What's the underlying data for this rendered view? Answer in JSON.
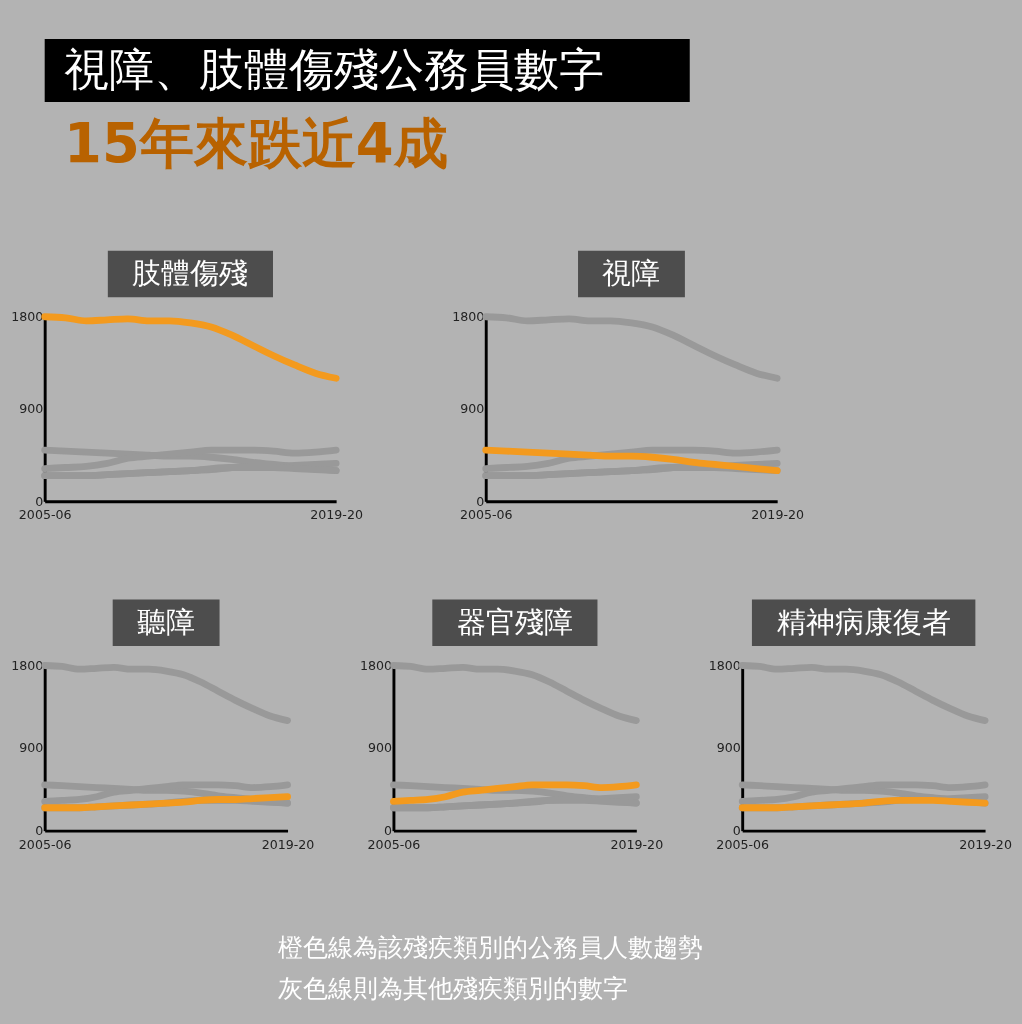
{
  "chart_data": [
    {
      "type": "other",
      "title": "視障、肢體傷殘公務員數字",
      "subtitle": "15年來跌近4成"
    },
    {
      "type": "line",
      "title": "肢體傷殘",
      "categories": [
        "2005-06",
        null,
        null,
        null,
        null,
        null,
        null,
        null,
        null,
        null,
        null,
        null,
        null,
        null,
        "2019-20"
      ],
      "ylim": [
        0,
        1800
      ],
      "yticks": [
        0,
        900,
        1800
      ],
      "grid": false,
      "series": [
        {
          "color": "#999999",
          "values": [
            500,
            490,
            480,
            470,
            460,
            450,
            440,
            440,
            430,
            410,
            380,
            360,
            340,
            320,
            300
          ]
        },
        {
          "color": "#999999",
          "values": [
            250,
            250,
            250,
            260,
            270,
            280,
            290,
            300,
            310,
            330,
            340,
            340,
            350,
            360,
            370
          ]
        },
        {
          "color": "#999999",
          "values": [
            320,
            330,
            340,
            370,
            420,
            440,
            460,
            480,
            500,
            500,
            500,
            490,
            470,
            480,
            500
          ]
        },
        {
          "color": "#999999",
          "values": [
            250,
            250,
            250,
            260,
            270,
            280,
            290,
            300,
            320,
            330,
            330,
            330,
            320,
            310,
            300
          ]
        },
        {
          "color": "#f39a1e",
          "values": [
            1800,
            1790,
            1760,
            1770,
            1780,
            1760,
            1760,
            1740,
            1700,
            1620,
            1520,
            1420,
            1330,
            1250,
            1200
          ]
        }
      ]
    },
    {
      "type": "line",
      "title": "視障",
      "categories": [
        "2005-06",
        null,
        null,
        null,
        null,
        null,
        null,
        null,
        null,
        null,
        null,
        null,
        null,
        null,
        "2019-20"
      ],
      "ylim": [
        0,
        1800
      ],
      "yticks": [
        0,
        900,
        1800
      ],
      "grid": false,
      "series": [
        {
          "color": "#999999",
          "values": [
            1800,
            1790,
            1760,
            1770,
            1780,
            1760,
            1760,
            1740,
            1700,
            1620,
            1520,
            1420,
            1330,
            1250,
            1200
          ]
        },
        {
          "color": "#999999",
          "values": [
            250,
            250,
            250,
            260,
            270,
            280,
            290,
            300,
            310,
            330,
            340,
            340,
            350,
            360,
            370
          ]
        },
        {
          "color": "#999999",
          "values": [
            320,
            330,
            340,
            370,
            420,
            440,
            460,
            480,
            500,
            500,
            500,
            490,
            470,
            480,
            500
          ]
        },
        {
          "color": "#999999",
          "values": [
            250,
            250,
            250,
            260,
            270,
            280,
            290,
            300,
            320,
            330,
            330,
            330,
            320,
            310,
            300
          ]
        },
        {
          "color": "#f39a1e",
          "values": [
            500,
            490,
            480,
            470,
            460,
            450,
            440,
            440,
            430,
            410,
            380,
            360,
            340,
            320,
            300
          ]
        }
      ]
    },
    {
      "type": "line",
      "title": "聽障",
      "categories": [
        "2005-06",
        null,
        null,
        null,
        null,
        null,
        null,
        null,
        null,
        null,
        null,
        null,
        null,
        null,
        "2019-20"
      ],
      "ylim": [
        0,
        1800
      ],
      "yticks": [
        0,
        900,
        1800
      ],
      "grid": false,
      "series": [
        {
          "color": "#999999",
          "values": [
            1800,
            1790,
            1760,
            1770,
            1780,
            1760,
            1760,
            1740,
            1700,
            1620,
            1520,
            1420,
            1330,
            1250,
            1200
          ]
        },
        {
          "color": "#999999",
          "values": [
            500,
            490,
            480,
            470,
            460,
            450,
            440,
            440,
            430,
            410,
            380,
            360,
            340,
            320,
            300
          ]
        },
        {
          "color": "#999999",
          "values": [
            320,
            330,
            340,
            370,
            420,
            440,
            460,
            480,
            500,
            500,
            500,
            490,
            470,
            480,
            500
          ]
        },
        {
          "color": "#999999",
          "values": [
            250,
            250,
            250,
            260,
            270,
            280,
            290,
            300,
            320,
            330,
            330,
            330,
            320,
            310,
            300
          ]
        },
        {
          "color": "#f39a1e",
          "values": [
            250,
            250,
            250,
            260,
            270,
            280,
            290,
            300,
            310,
            330,
            340,
            340,
            350,
            360,
            370
          ]
        }
      ]
    },
    {
      "type": "line",
      "title": "器官殘障",
      "categories": [
        "2005-06",
        null,
        null,
        null,
        null,
        null,
        null,
        null,
        null,
        null,
        null,
        null,
        null,
        null,
        "2019-20"
      ],
      "ylim": [
        0,
        1800
      ],
      "yticks": [
        0,
        900,
        1800
      ],
      "grid": false,
      "series": [
        {
          "color": "#999999",
          "values": [
            1800,
            1790,
            1760,
            1770,
            1780,
            1760,
            1760,
            1740,
            1700,
            1620,
            1520,
            1420,
            1330,
            1250,
            1200
          ]
        },
        {
          "color": "#999999",
          "values": [
            500,
            490,
            480,
            470,
            460,
            450,
            440,
            440,
            430,
            410,
            380,
            360,
            340,
            320,
            300
          ]
        },
        {
          "color": "#999999",
          "values": [
            250,
            250,
            250,
            260,
            270,
            280,
            290,
            300,
            310,
            330,
            340,
            340,
            350,
            360,
            370
          ]
        },
        {
          "color": "#999999",
          "values": [
            250,
            250,
            250,
            260,
            270,
            280,
            290,
            300,
            320,
            330,
            330,
            330,
            320,
            310,
            300
          ]
        },
        {
          "color": "#f39a1e",
          "values": [
            320,
            330,
            340,
            370,
            420,
            440,
            460,
            480,
            500,
            500,
            500,
            490,
            470,
            480,
            500
          ]
        }
      ]
    },
    {
      "type": "line",
      "title": "精神病康復者",
      "categories": [
        "2005-06",
        null,
        null,
        null,
        null,
        null,
        null,
        null,
        null,
        null,
        null,
        null,
        null,
        null,
        "2019-20"
      ],
      "ylim": [
        0,
        1800
      ],
      "yticks": [
        0,
        900,
        1800
      ],
      "grid": false,
      "series": [
        {
          "color": "#999999",
          "values": [
            1800,
            1790,
            1760,
            1770,
            1780,
            1760,
            1760,
            1740,
            1700,
            1620,
            1520,
            1420,
            1330,
            1250,
            1200
          ]
        },
        {
          "color": "#999999",
          "values": [
            500,
            490,
            480,
            470,
            460,
            450,
            440,
            440,
            430,
            410,
            380,
            360,
            340,
            320,
            300
          ]
        },
        {
          "color": "#999999",
          "values": [
            250,
            250,
            250,
            260,
            270,
            280,
            290,
            300,
            310,
            330,
            340,
            340,
            350,
            360,
            370
          ]
        },
        {
          "color": "#999999",
          "values": [
            320,
            330,
            340,
            370,
            420,
            440,
            460,
            480,
            500,
            500,
            500,
            490,
            470,
            480,
            500
          ]
        },
        {
          "color": "#f39a1e",
          "values": [
            250,
            250,
            250,
            260,
            270,
            280,
            290,
            300,
            320,
            330,
            330,
            330,
            320,
            310,
            300
          ]
        }
      ]
    },
    {
      "type": "other",
      "annotations": [
        "橙色線為該殘疾類別的公務員人數趨勢",
        "灰色線則為其他殘疾類別的數字"
      ]
    }
  ]
}
